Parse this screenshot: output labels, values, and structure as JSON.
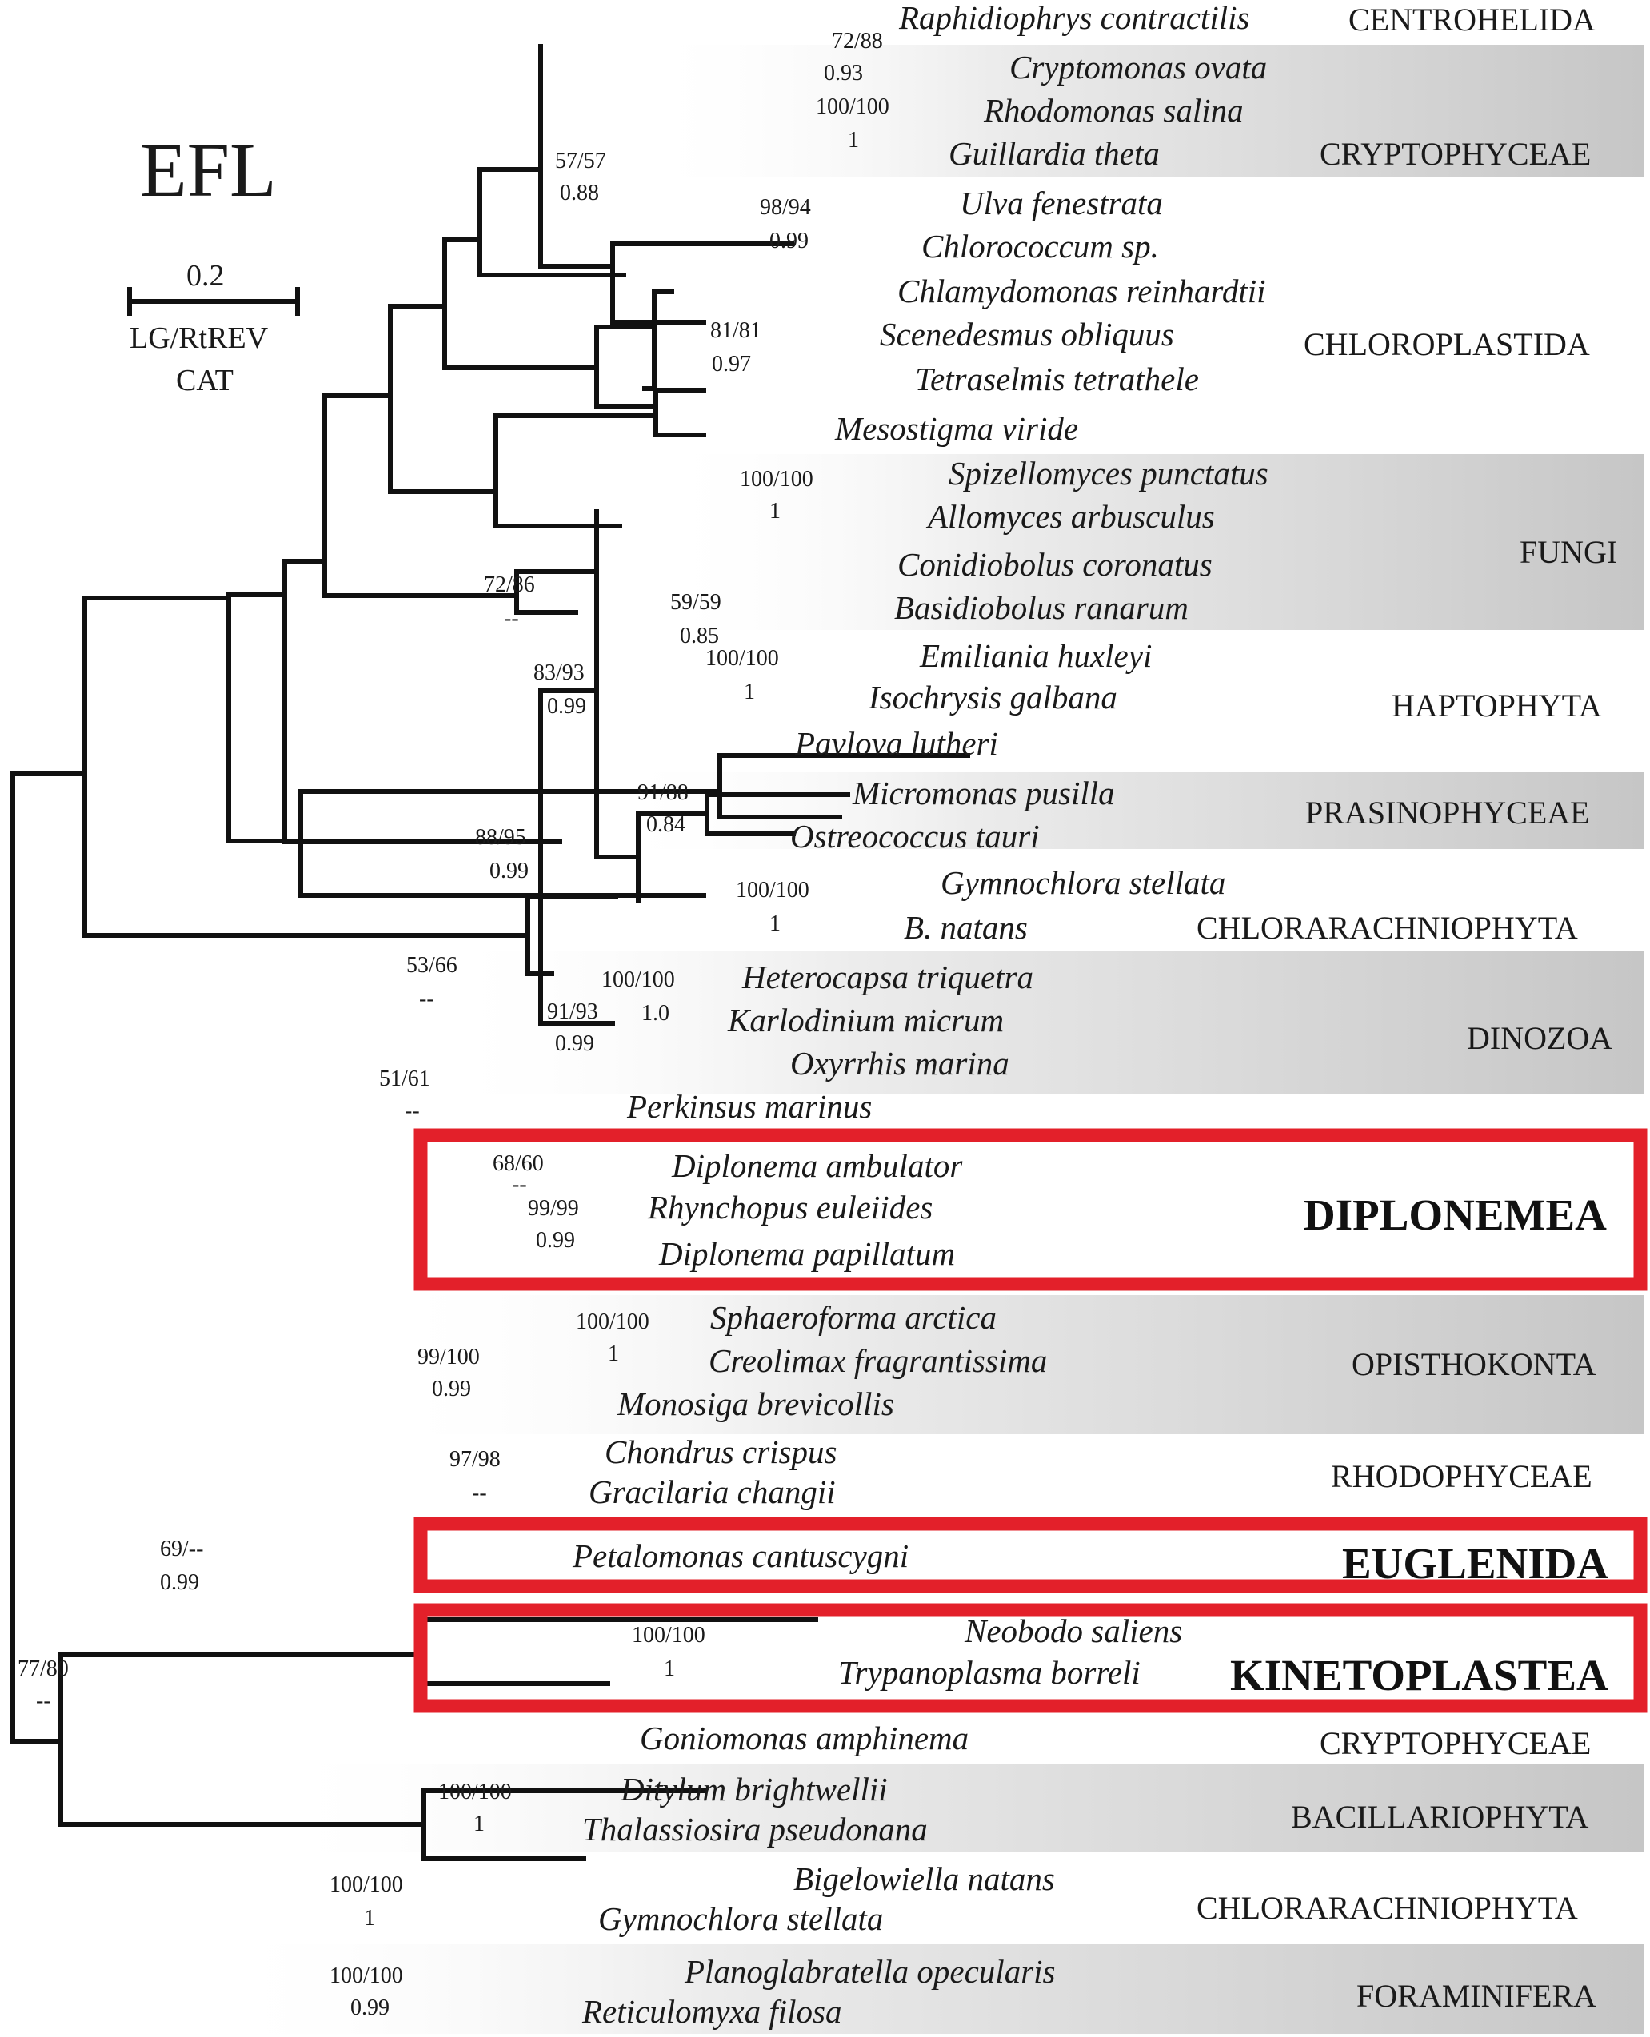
{
  "title": "EFL",
  "scale": {
    "value": "0.2",
    "model_line1": "LG/RtREV",
    "model_line2": "CAT"
  },
  "taxa": [
    "Raphidiophrys contractilis",
    "Cryptomonas ovata",
    "Rhodomonas salina",
    "Guillardia theta",
    "Ulva fenestrata",
    "Chlorococcum sp.",
    "Chlamydomonas reinhardtii",
    "Scenedesmus obliquus",
    "Tetraselmis tetrathele",
    "Mesostigma viride",
    "Spizellomyces punctatus",
    "Allomyces arbusculus",
    "Conidiobolus coronatus",
    "Basidiobolus ranarum",
    "Emiliania huxleyi",
    "Isochrysis galbana",
    "Pavlova lutheri",
    "Micromonas pusilla",
    "Ostreococcus tauri",
    "Gymnochlora stellata",
    "B. natans",
    "Heterocapsa triquetra",
    "Karlodinium micrum",
    "Oxyrrhis marina",
    "Perkinsus marinus",
    "Diplonema ambulator",
    "Rhynchopus euleiides",
    "Diplonema papillatum",
    "Sphaeroforma arctica",
    "Creolimax fragrantissima",
    "Monosiga brevicollis",
    "Chondrus crispus",
    "Gracilaria changii",
    "Petalomonas cantuscygni",
    "Neobodo saliens",
    "Trypanoplasma borreli",
    "Goniomonas amphinema",
    "Ditylum brightwellii",
    "Thalassiosira pseudonana",
    "Bigelowiella natans",
    "Gymnochlora stellata",
    "Planoglabratella opecularis",
    "Reticulomyxa filosa"
  ],
  "groups": [
    "CENTROHELIDA",
    "CRYPTOPHYCEAE",
    "CHLOROPLASTIDA",
    "FUNGI",
    "HAPTOPHYTA",
    "PRASINOPHYCEAE",
    "CHLORARACHNIOPHYTA",
    "DINOZOA",
    "OPISTHOKONTA",
    "RHODOPHYCEAE",
    "CRYPTOPHYCEAE",
    "BACILLARIOPHYTA",
    "CHLORARACHNIOPHYTA",
    "FORAMINIFERA"
  ],
  "highlighted_groups": [
    "DIPLONEMEA",
    "EUGLENIDA",
    "KINETOPLASTEA"
  ],
  "supports": [
    "72/88",
    "0.93",
    "100/100",
    "1",
    "57/57",
    "0.88",
    "98/94",
    "0.99",
    "81/81",
    "0.97",
    "100/100",
    "1",
    "59/59",
    "0.85",
    "72/86",
    "--",
    "100/100",
    "1",
    "83/93",
    "0.99",
    "91/88",
    "0.84",
    "100/100",
    "1",
    "88/95",
    "0.99",
    "100/100",
    "1.0",
    "91/93",
    "0.99",
    "53/66",
    "--",
    "51/61",
    "--",
    "68/60",
    "--",
    "99/99",
    "0.99",
    "100/100",
    "1",
    "99/100",
    "0.99",
    "97/98",
    "--",
    "69/--",
    "0.99",
    "100/100",
    "1",
    "77/80",
    "--",
    "100/100",
    "1",
    "100/100",
    "1",
    "100/100",
    "0.99"
  ],
  "colors": {
    "highlight_box": "#e3202a",
    "band_gray": "#c9c9c9",
    "ink": "#111111"
  }
}
